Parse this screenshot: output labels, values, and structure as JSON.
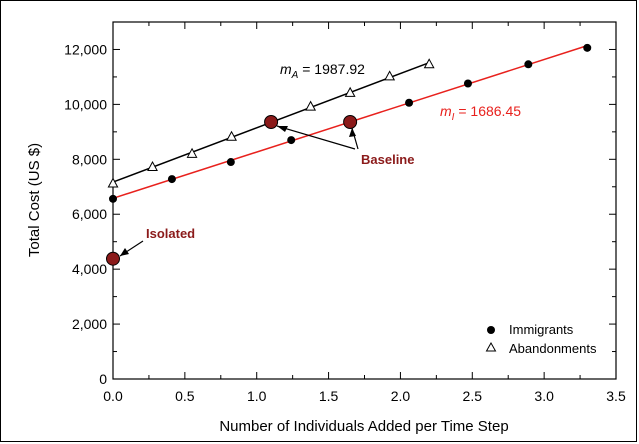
{
  "chart_data": {
    "type": "scatter",
    "title": "",
    "xlabel": "Number of Individuals Added per Time Step",
    "ylabel": "Total Cost (US $)",
    "xlim": [
      0,
      3.5
    ],
    "ylim": [
      0,
      13000
    ],
    "x_ticks": [
      0.0,
      0.5,
      1.0,
      1.5,
      2.0,
      2.5,
      3.0,
      3.5
    ],
    "x_tick_labels": [
      "0.0",
      "0.5",
      "1.0",
      "1.5",
      "2.0",
      "2.5",
      "3.0",
      "3.5"
    ],
    "y_ticks": [
      0,
      2000,
      4000,
      6000,
      8000,
      10000,
      12000
    ],
    "y_tick_labels": [
      "0",
      "2,000",
      "4,000",
      "6,000",
      "8,000",
      "10,000",
      "12,000"
    ],
    "grid": false,
    "legend_position": "bottom-right",
    "series": [
      {
        "name": "Immigrants",
        "marker": "filled-circle",
        "color": "#000000",
        "x": [
          0.0,
          0.41,
          0.82,
          1.24,
          1.65,
          2.06,
          2.47,
          2.89,
          3.3
        ],
        "y": [
          6560,
          7280,
          7900,
          8700,
          9360,
          10060,
          10760,
          11460,
          12060
        ]
      },
      {
        "name": "Abandonments",
        "marker": "open-triangle",
        "color": "#000000",
        "x": [
          0.0,
          0.275,
          0.55,
          0.825,
          1.1,
          1.375,
          1.65,
          1.925,
          2.2
        ],
        "y": [
          7120,
          7720,
          8200,
          8820,
          9360,
          9920,
          10420,
          11020,
          11460
        ]
      }
    ],
    "fit_lines": [
      {
        "series": "Immigrants",
        "color": "#e8211d",
        "x": [
          0.0,
          3.3
        ],
        "y": [
          6580,
          12140
        ],
        "label_prefix": "m",
        "label_sub": "I",
        "label_value": " = 1686.45"
      },
      {
        "series": "Abandonments",
        "color": "#000000",
        "x": [
          0.0,
          2.2
        ],
        "y": [
          7170,
          11520
        ],
        "label_prefix": "m",
        "label_sub": "A",
        "label_value": " = 1987.92"
      }
    ],
    "highlight_points": [
      {
        "name": "baseline-abandonments",
        "x": 1.1,
        "y": 9360,
        "color": "#8b1a1a"
      },
      {
        "name": "baseline-immigrants",
        "x": 1.65,
        "y": 9360,
        "color": "#8b1a1a"
      },
      {
        "name": "isolated",
        "x": 0.0,
        "y": 4380,
        "color": "#8b1a1a"
      }
    ],
    "annotations": [
      {
        "text": "Baseline",
        "color": "#8b1a1a"
      },
      {
        "text": "Isolated",
        "color": "#8b1a1a"
      }
    ]
  }
}
